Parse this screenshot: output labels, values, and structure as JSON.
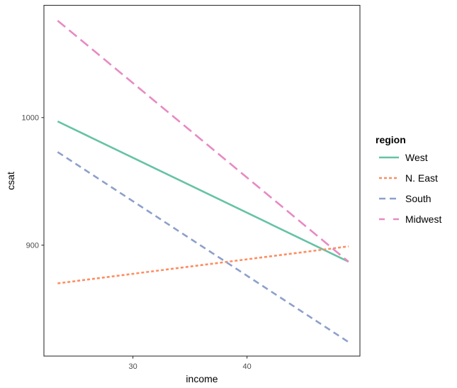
{
  "chart_data": {
    "type": "line",
    "title": "",
    "xlabel": "income",
    "ylabel": "csat",
    "xlim": [
      22.2,
      49.9
    ],
    "ylim": [
      813,
      1088
    ],
    "x_ticks": [
      30,
      40
    ],
    "y_ticks": [
      900,
      1000
    ],
    "grid": false,
    "legend_position": "right",
    "legend_title": "region",
    "series": [
      {
        "name": "West",
        "color": "#66c2a5",
        "dash": "solid",
        "x": [
          23.4,
          48.9
        ],
        "values": [
          997,
          887
        ]
      },
      {
        "name": "N. East",
        "color": "#fc8d62",
        "dash": "dotted",
        "x": [
          23.4,
          48.9
        ],
        "values": [
          870,
          899
        ]
      },
      {
        "name": "South",
        "color": "#8da0cb",
        "dash": "dashed",
        "x": [
          23.4,
          48.9
        ],
        "values": [
          973,
          824
        ]
      },
      {
        "name": "Midwest",
        "color": "#e78ac3",
        "dash": "longdash",
        "x": [
          23.4,
          48.9
        ],
        "values": [
          1076,
          887
        ]
      }
    ]
  },
  "axes": {
    "x_title": "income",
    "y_title": "csat",
    "x_tick_labels": [
      "30",
      "40"
    ],
    "y_tick_labels": [
      "900",
      "1000"
    ]
  },
  "legend": {
    "title": "region",
    "items": [
      {
        "label": "West"
      },
      {
        "label": "N. East"
      },
      {
        "label": "South"
      },
      {
        "label": "Midwest"
      }
    ]
  }
}
